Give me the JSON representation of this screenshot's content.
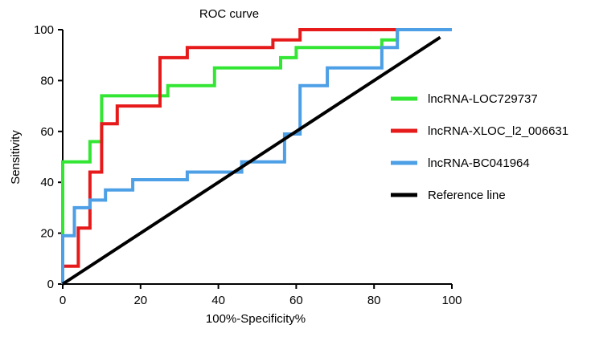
{
  "chart_data": {
    "type": "line",
    "title": "ROC curve",
    "xlabel": "100%-Specificity%",
    "ylabel": "Sensitivity",
    "xlim": [
      0,
      100
    ],
    "ylim": [
      0,
      100
    ],
    "xticks": [
      0,
      20,
      40,
      60,
      80,
      100
    ],
    "yticks": [
      0,
      20,
      40,
      60,
      80,
      100
    ],
    "grid": false,
    "legend_position": "right",
    "series": [
      {
        "name": "lncRNA-LOC729737",
        "color": "#33e633",
        "points": [
          [
            0,
            0
          ],
          [
            0,
            48
          ],
          [
            7,
            48
          ],
          [
            7,
            56
          ],
          [
            10,
            56
          ],
          [
            10,
            74
          ],
          [
            27,
            74
          ],
          [
            27,
            78
          ],
          [
            39,
            78
          ],
          [
            39,
            85
          ],
          [
            56,
            85
          ],
          [
            56,
            89
          ],
          [
            60,
            89
          ],
          [
            60,
            93
          ],
          [
            82,
            93
          ],
          [
            82,
            96
          ],
          [
            86,
            96
          ],
          [
            86,
            100
          ]
        ]
      },
      {
        "name": "lncRNA-XLOC_l2_006631",
        "color": "#e61a1a",
        "points": [
          [
            0,
            0
          ],
          [
            0,
            7
          ],
          [
            4,
            7
          ],
          [
            4,
            22
          ],
          [
            7,
            22
          ],
          [
            7,
            44
          ],
          [
            10,
            44
          ],
          [
            10,
            63
          ],
          [
            14,
            63
          ],
          [
            14,
            70
          ],
          [
            25,
            70
          ],
          [
            25,
            89
          ],
          [
            32,
            89
          ],
          [
            32,
            93
          ],
          [
            54,
            93
          ],
          [
            54,
            96
          ],
          [
            61,
            96
          ],
          [
            61,
            100
          ],
          [
            86,
            100
          ]
        ]
      },
      {
        "name": "lncRNA-BC041964",
        "color": "#4d9fe6",
        "points": [
          [
            0,
            0
          ],
          [
            0,
            19
          ],
          [
            3,
            19
          ],
          [
            3,
            30
          ],
          [
            7,
            30
          ],
          [
            7,
            33
          ],
          [
            11,
            33
          ],
          [
            11,
            37
          ],
          [
            18,
            37
          ],
          [
            18,
            41
          ],
          [
            32,
            41
          ],
          [
            32,
            44
          ],
          [
            46,
            44
          ],
          [
            46,
            48
          ],
          [
            57,
            48
          ],
          [
            57,
            59
          ],
          [
            61,
            59
          ],
          [
            61,
            78
          ],
          [
            68,
            78
          ],
          [
            68,
            85
          ],
          [
            82,
            85
          ],
          [
            82,
            93
          ],
          [
            86,
            93
          ],
          [
            86,
            100
          ],
          [
            100,
            100
          ]
        ]
      },
      {
        "name": "Reference line",
        "color": "#000000",
        "points": [
          [
            0,
            0
          ],
          [
            97,
            97
          ]
        ]
      }
    ]
  }
}
